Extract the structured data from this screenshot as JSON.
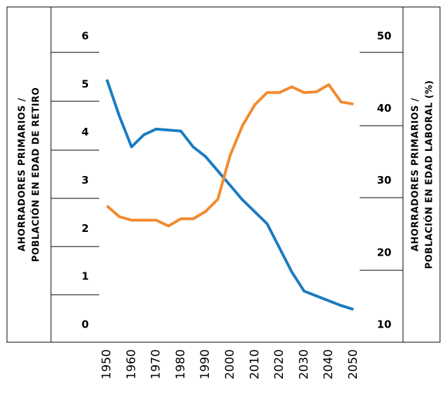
{
  "chart_data": {
    "type": "line",
    "y_label": [
      "AHORRADORES PRIMARIOS /",
      "POBLACIÓN EN EDAD DE RETIRO"
    ],
    "y2_label": [
      "AHORRADORES PRIMARIOS /",
      "POBLACIÓN EN EDAD LABORAL (%)"
    ],
    "x": [
      1950,
      1955,
      1960,
      1965,
      1970,
      1975,
      1980,
      1985,
      1990,
      1995,
      2000,
      2005,
      2010,
      2015,
      2020,
      2025,
      2030,
      2035,
      2040,
      2045,
      2050
    ],
    "xlim": [
      1950,
      2050
    ],
    "xticks": [
      1950,
      1960,
      1970,
      1980,
      1990,
      2000,
      2010,
      2020,
      2030,
      2040,
      2050
    ],
    "ylim": [
      0,
      6
    ],
    "yticks": [
      0,
      1,
      2,
      3,
      4,
      5,
      6
    ],
    "y2lim": [
      10,
      50
    ],
    "y2ticks": [
      10,
      20,
      30,
      40,
      50
    ],
    "series": [
      {
        "color": "#1b7cc1",
        "values": [
          5.1,
          4.35,
          3.7,
          3.95,
          4.07,
          4.05,
          4.03,
          3.7,
          3.5,
          3.2,
          2.9,
          2.6,
          2.35,
          2.1,
          1.6,
          1.1,
          0.7,
          0.6,
          0.5,
          0.4,
          0.32
        ]
      },
      {
        "color": "#f28a30",
        "axis": "y2",
        "values": [
          26.5,
          25.0,
          24.5,
          24.5,
          24.5,
          23.7,
          24.7,
          24.7,
          25.7,
          27.4,
          33.5,
          37.6,
          40.5,
          42.2,
          42.2,
          43.0,
          42.2,
          42.3,
          43.3,
          40.9,
          40.6
        ]
      }
    ]
  }
}
